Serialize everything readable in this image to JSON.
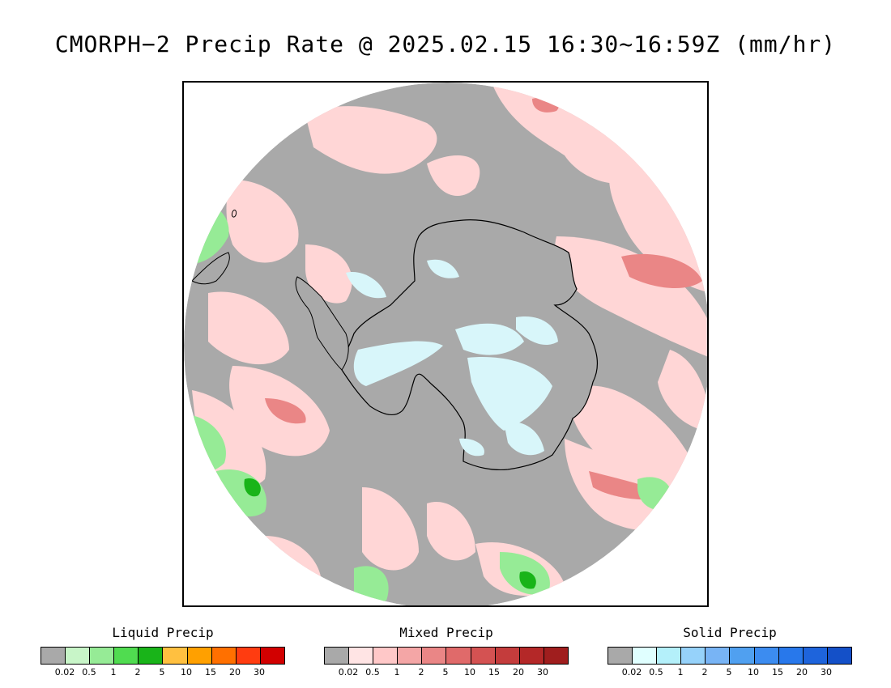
{
  "title": "CMORPH−2 Precip Rate @ 2025.02.15 16:30~16:59Z (mm/hr)",
  "map": {
    "projection": "south-polar-stereographic",
    "background_color": "#a9a9a9",
    "coastline_color": "#000000"
  },
  "legends": [
    {
      "title": "Liquid Precip",
      "colors": [
        "#a9a9a9",
        "#c8f5c8",
        "#96eb96",
        "#50dc50",
        "#19b419",
        "#ffc040",
        "#ffa000",
        "#ff7000",
        "#ff3c10",
        "#d20000"
      ],
      "ticks": [
        "0.02",
        "0.5",
        "1",
        "2",
        "5",
        "10",
        "15",
        "20",
        "30"
      ]
    },
    {
      "title": "Mixed Precip",
      "colors": [
        "#a9a9a9",
        "#ffe4e4",
        "#ffc8c8",
        "#f4a6a6",
        "#ea8686",
        "#e06a6a",
        "#d45252",
        "#c43c3c",
        "#b42828",
        "#a01e1e"
      ],
      "ticks": [
        "0.02",
        "0.5",
        "1",
        "2",
        "5",
        "10",
        "15",
        "20",
        "30"
      ]
    },
    {
      "title": "Solid Precip",
      "colors": [
        "#a9a9a9",
        "#e0ffff",
        "#b4f0fa",
        "#96d2fa",
        "#78b4f5",
        "#50a0f0",
        "#3c8cf0",
        "#2878eb",
        "#1e64dc",
        "#1450c8"
      ],
      "ticks": [
        "0.02",
        "0.5",
        "1",
        "2",
        "5",
        "10",
        "15",
        "20",
        "30"
      ]
    }
  ]
}
